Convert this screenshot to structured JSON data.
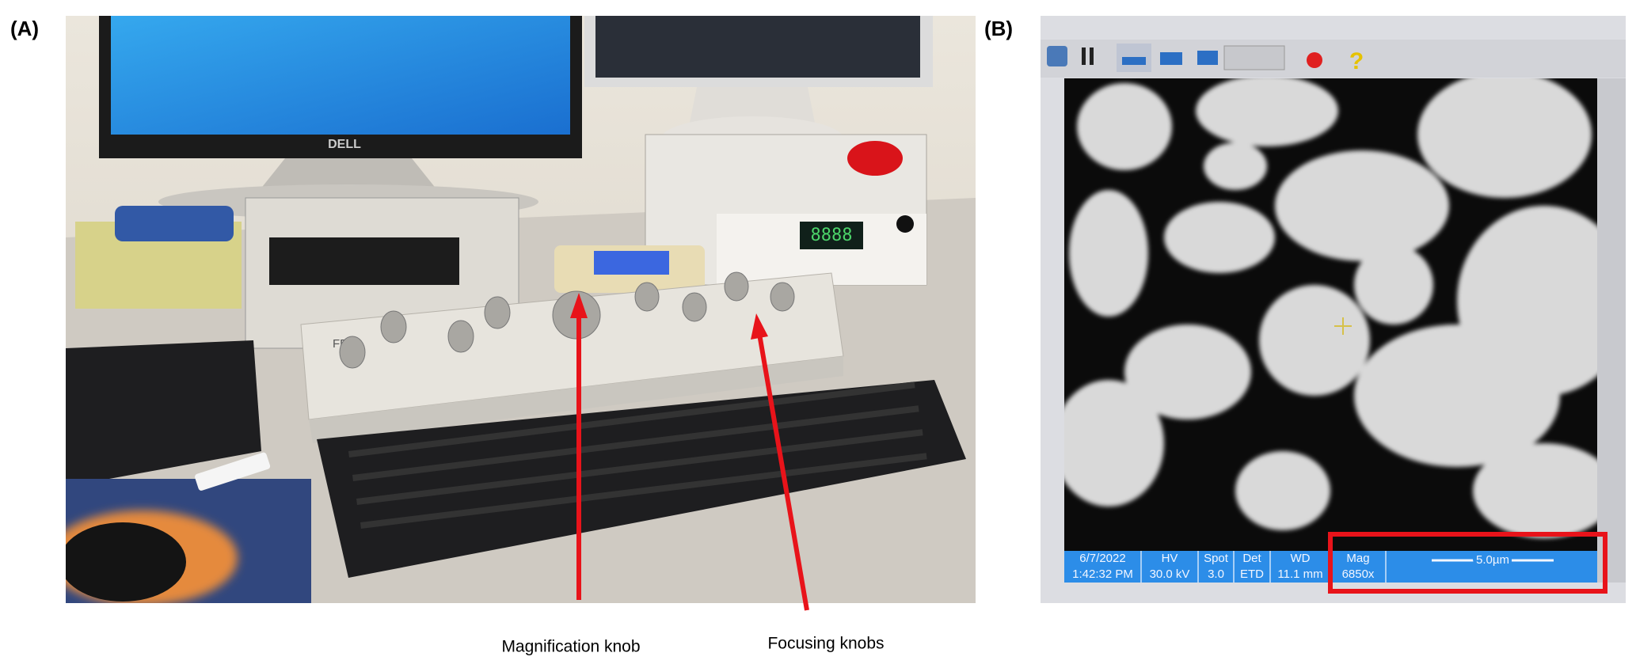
{
  "panel_a": {
    "label": "(A)",
    "annotations": [
      "Magnification knob",
      "Focusing knobs"
    ],
    "brand_monitor": "DELL",
    "brand_panel": "FEI"
  },
  "panel_b": {
    "label": "(B)",
    "status_bar": [
      {
        "top": "6/7/2022",
        "bottom": "1:42:32 PM"
      },
      {
        "top": "HV",
        "bottom": "30.0 kV"
      },
      {
        "top": "Spot",
        "bottom": "3.0"
      },
      {
        "top": "Det",
        "bottom": "ETD"
      },
      {
        "top": "WD",
        "bottom": "11.1 mm"
      },
      {
        "top": "Mag",
        "bottom": "6850x"
      }
    ],
    "scale_bar": "5.0µm"
  }
}
